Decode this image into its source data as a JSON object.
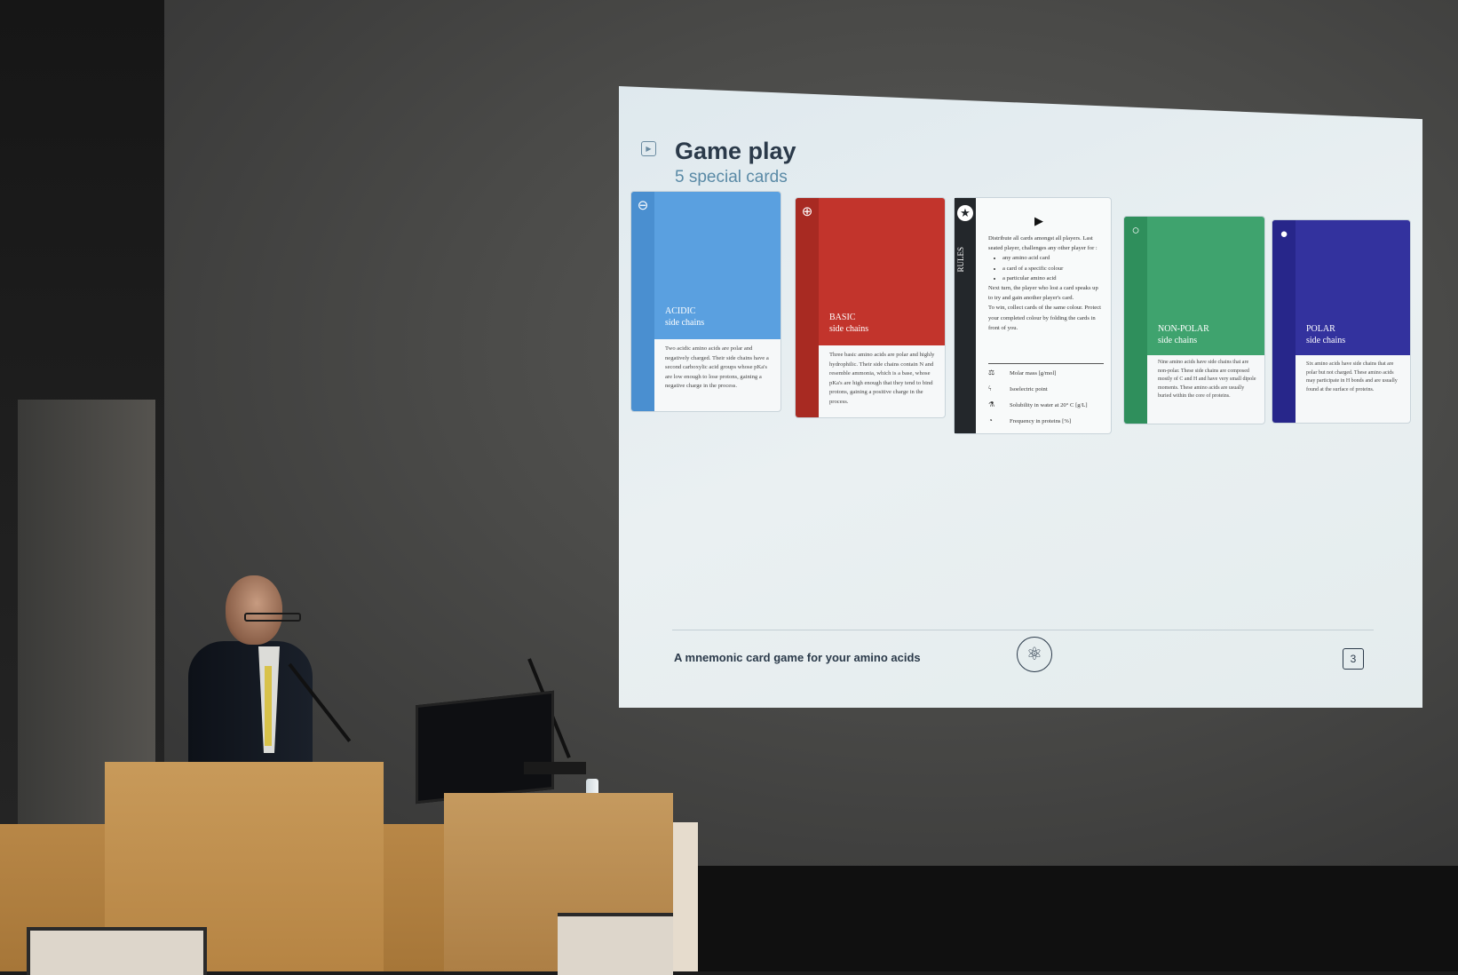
{
  "slide": {
    "title": "Game play",
    "subtitle": "5 special cards",
    "footer_text": "A mnemonic card game for your amino acids",
    "page_number": "3"
  },
  "cards": [
    {
      "label1": "ACIDIC",
      "label2": "side chains",
      "symbol": "⊖",
      "color": "#5aa0e0",
      "desc": "Two acidic amino acids are polar and negatively charged. Their side chains have a second carboxylic acid groups whose pKa's are low enough to lose protons, gaining a negative charge in the process."
    },
    {
      "label1": "BASIC",
      "label2": "side chains",
      "symbol": "⊕",
      "color": "#c2342c",
      "desc": "Three basic amino acids are polar and highly hydrophilic. Their side chains contain N and resemble ammonia, which is a base, whose pKa's are high enough that they tend to bind protons, gaining a positive charge in the process."
    },
    {
      "label1": "NON-POLAR",
      "label2": "side chains",
      "symbol": "○",
      "color": "#3fa36e",
      "desc": "Nine amino acids have side chains that are non-polar. These side chains are composed mostly of C and H and have very small dipole moments. These amino acids are usually buried within the core of proteins."
    },
    {
      "label1": "POLAR",
      "label2": "side chains",
      "symbol": "●",
      "color": "#33329e",
      "desc": "Six amino acids have side chains that are polar but not charged. These amino acids may participate in H bonds and are usually found at the surface of proteins."
    }
  ],
  "rules_card": {
    "side_label": "RULES",
    "intro": "Distribute all cards amongst all players. Last seated player, challenges any other player for :",
    "bullets": [
      "any amino acid card",
      "a card of a specific colour",
      "a particular amino acid"
    ],
    "next_turn": "Next turn, the player who lost a card speaks up to try and gain another player's card.",
    "to_win": "To win, collect cards of the same colour. Protect your completed colour by folding the cards in front of you.",
    "stats": [
      {
        "icon": "⚖",
        "text": "Molar mass [g/mol]"
      },
      {
        "icon": "ϟ",
        "text": "Isoelectric point"
      },
      {
        "icon": "⚗",
        "text": "Solubility in water at 20° C [g/L]"
      },
      {
        "icon": "◔",
        "text": "Frequency in proteins [%]"
      }
    ]
  },
  "colors": {
    "slide_bg": "#e6eef1",
    "title": "#2b3a4a",
    "subtitle": "#5a8aa6",
    "rules_strip": "#23272b"
  }
}
